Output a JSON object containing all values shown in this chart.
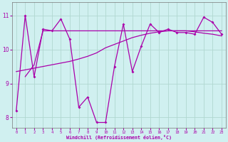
{
  "xlabel": "Windchill (Refroidissement éolien,°C)",
  "ylabel": "",
  "bg_color": "#d0f0f0",
  "line_color": "#aa00aa",
  "grid_color": "#b0d8d0",
  "xlim": [
    -0.5,
    23.5
  ],
  "ylim": [
    7.7,
    11.4
  ],
  "yticks": [
    8,
    9,
    10,
    11
  ],
  "xticks": [
    0,
    1,
    2,
    3,
    4,
    5,
    6,
    7,
    8,
    9,
    10,
    11,
    12,
    13,
    14,
    15,
    16,
    17,
    18,
    19,
    20,
    21,
    22,
    23
  ],
  "main_x": [
    0,
    1,
    2,
    3,
    4,
    5,
    6,
    7,
    8,
    9,
    10,
    11,
    12,
    13,
    14,
    15,
    16,
    17,
    18,
    19,
    20,
    21,
    22,
    23
  ],
  "main_y": [
    8.2,
    11.0,
    9.2,
    10.6,
    10.55,
    10.9,
    10.3,
    8.3,
    8.6,
    7.85,
    7.85,
    9.5,
    10.75,
    9.35,
    10.1,
    10.75,
    10.5,
    10.6,
    10.5,
    10.5,
    10.45,
    10.95,
    10.8,
    10.45
  ],
  "trend1_x": [
    0,
    1,
    2,
    3,
    4,
    5,
    6,
    7,
    8,
    9,
    10,
    11,
    12,
    13,
    14,
    15,
    16,
    17,
    18,
    19,
    20,
    21,
    22,
    23
  ],
  "trend1_y": [
    9.35,
    9.4,
    9.45,
    9.5,
    9.55,
    9.6,
    9.65,
    9.72,
    9.8,
    9.9,
    10.05,
    10.15,
    10.25,
    10.35,
    10.42,
    10.48,
    10.52,
    10.55,
    10.55,
    10.55,
    10.52,
    10.48,
    10.45,
    10.4
  ],
  "trend2_x": [
    1,
    2,
    3,
    4,
    5,
    6,
    7,
    8,
    9,
    10,
    11,
    12,
    13,
    14,
    15,
    16,
    17,
    18,
    19,
    20,
    21,
    22,
    23
  ],
  "trend2_y": [
    9.2,
    9.55,
    10.55,
    10.55,
    10.55,
    10.55,
    10.55,
    10.55,
    10.55,
    10.55,
    10.55,
    10.55,
    10.55,
    10.55,
    10.55,
    10.55,
    10.55,
    10.55,
    10.55,
    10.55,
    10.55,
    10.55,
    10.55
  ]
}
